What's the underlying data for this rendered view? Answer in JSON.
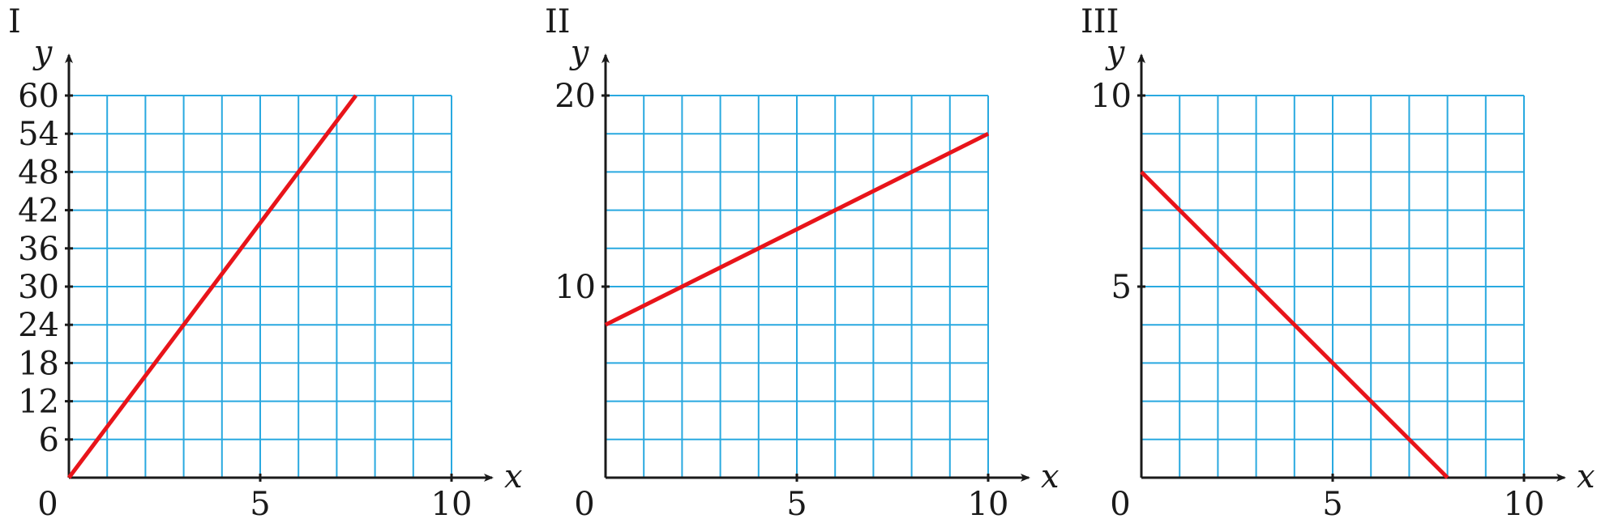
{
  "chart_data": [
    {
      "type": "line",
      "panel_label": "I",
      "xlabel": "x",
      "ylabel": "y",
      "origin_label": "0",
      "xlim": [
        0,
        10
      ],
      "ylim": [
        0,
        60
      ],
      "x_grid_step": 1,
      "y_grid_step": 6,
      "x_ticks": [
        5,
        10
      ],
      "x_tick_labels": [
        "5",
        "10"
      ],
      "y_ticks": [
        6,
        12,
        18,
        24,
        30,
        36,
        42,
        48,
        54,
        60
      ],
      "y_tick_labels": [
        "6",
        "12",
        "18",
        "24",
        "30",
        "36",
        "42",
        "48",
        "54",
        "60"
      ],
      "grid": true,
      "colors": {
        "line": "#e8141a",
        "grid": "#29a9e0",
        "axis": "#1a1a1a"
      },
      "series": [
        {
          "x": [
            0,
            7.5
          ],
          "y": [
            0,
            60
          ]
        }
      ]
    },
    {
      "type": "line",
      "panel_label": "II",
      "xlabel": "x",
      "ylabel": "y",
      "origin_label": "0",
      "xlim": [
        0,
        10
      ],
      "ylim": [
        0,
        20
      ],
      "x_grid_step": 1,
      "y_grid_step": 2,
      "x_ticks": [
        5,
        10
      ],
      "x_tick_labels": [
        "5",
        "10"
      ],
      "y_ticks": [
        10,
        20
      ],
      "y_tick_labels": [
        "10",
        "20"
      ],
      "grid": true,
      "colors": {
        "line": "#e8141a",
        "grid": "#29a9e0",
        "axis": "#1a1a1a"
      },
      "series": [
        {
          "x": [
            0,
            10
          ],
          "y": [
            8,
            18
          ]
        }
      ]
    },
    {
      "type": "line",
      "panel_label": "III",
      "xlabel": "x",
      "ylabel": "y",
      "origin_label": "0",
      "xlim": [
        0,
        10
      ],
      "ylim": [
        0,
        10
      ],
      "x_grid_step": 1,
      "y_grid_step": 1,
      "x_ticks": [
        5,
        10
      ],
      "x_tick_labels": [
        "5",
        "10"
      ],
      "y_ticks": [
        5,
        10
      ],
      "y_tick_labels": [
        "5",
        "10"
      ],
      "grid": true,
      "colors": {
        "line": "#e8141a",
        "grid": "#29a9e0",
        "axis": "#1a1a1a"
      },
      "series": [
        {
          "x": [
            0,
            8
          ],
          "y": [
            8,
            0
          ]
        }
      ]
    }
  ]
}
